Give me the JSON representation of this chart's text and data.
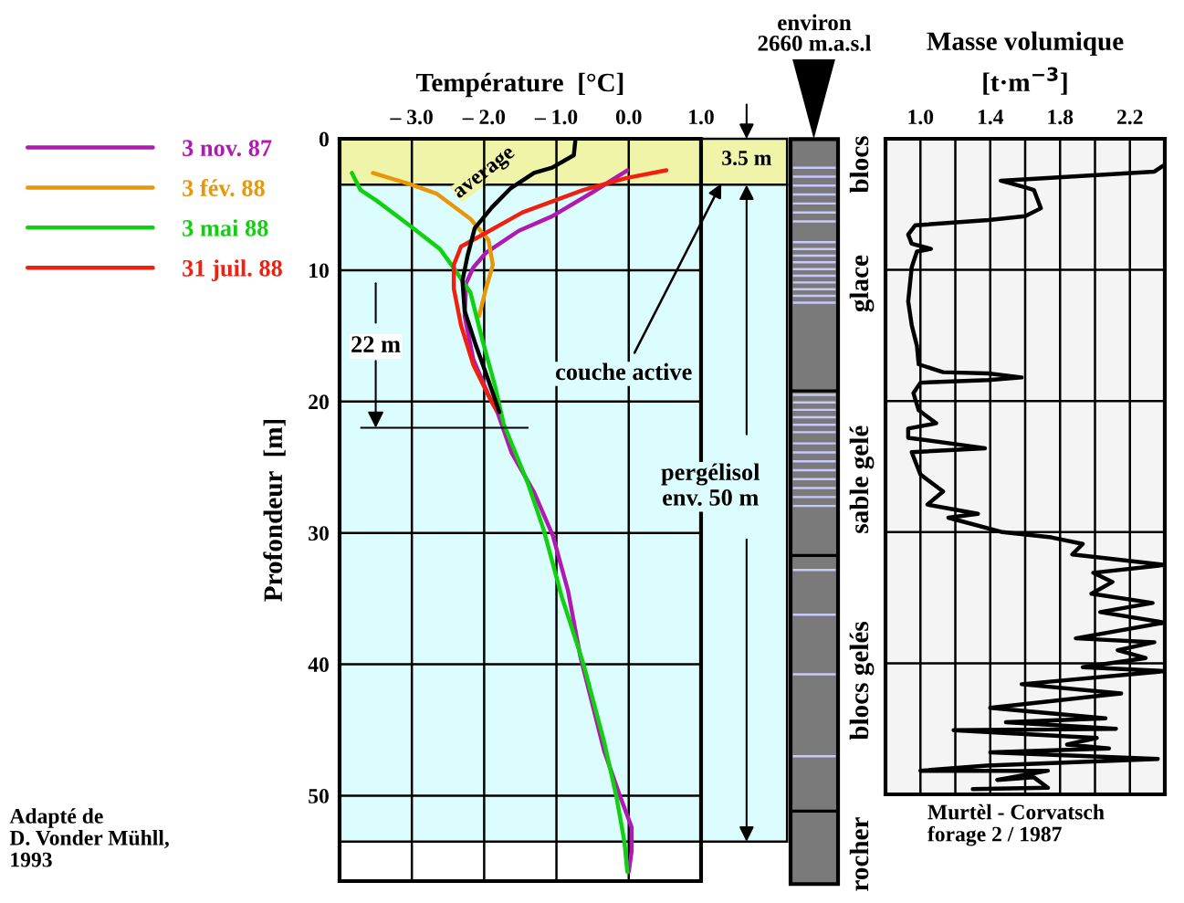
{
  "chart_data": [
    {
      "type": "line",
      "xlabel": "Température  [°C]",
      "ylabel": "Profondeur  [m]",
      "xlim": [
        -4,
        1
      ],
      "ylim": [
        56.5,
        0
      ],
      "xticks": [
        {
          "value": -3,
          "label": "– 3.0"
        },
        {
          "value": -2,
          "label": "– 2.0"
        },
        {
          "value": -1,
          "label": "– 1.0"
        },
        {
          "value": 0,
          "label": "0.0"
        },
        {
          "value": 1,
          "label": "1.0"
        }
      ],
      "yticks": [
        0,
        10,
        20,
        30,
        40,
        50
      ],
      "grid": true,
      "legend": "left",
      "line_style": "solid",
      "series": [
        {
          "name": "3 nov. 87",
          "color": "#b01ab0",
          "x": [
            -0.02,
            -0.51,
            -1.06,
            -1.52,
            -1.98,
            -2.15,
            -2.25,
            -2.27,
            -2.15,
            -1.94,
            -1.81,
            -1.62,
            -1.31,
            -1.05,
            -0.84,
            -0.67,
            -0.34,
            -0.13,
            0.04,
            0.04,
            0.0
          ],
          "values": [
            2.4,
            4.1,
            5.9,
            7.0,
            8.7,
            9.8,
            11.0,
            13.5,
            16.8,
            19.5,
            20.9,
            23.9,
            26.9,
            30.2,
            34.4,
            39.4,
            46.6,
            49.9,
            52.4,
            54.2,
            55.8
          ]
        },
        {
          "name": "3 fév. 88",
          "color": "#e8960a",
          "x": [
            -3.54,
            -3.03,
            -2.65,
            -2.19,
            -1.94,
            -1.88,
            -1.98,
            -2.07
          ],
          "values": [
            2.6,
            3.45,
            4.2,
            6.1,
            7.7,
            9.6,
            11.5,
            13.5
          ]
        },
        {
          "name": "3 mai 88",
          "color": "#10d010",
          "x": [
            -3.83,
            -3.71,
            -3.49,
            -3.03,
            -2.61,
            -2.4,
            -2.19,
            -2.02,
            -1.85,
            -1.73,
            -1.39,
            -1.18,
            -0.93,
            -0.63,
            -0.34,
            -0.17,
            -0.06,
            -0.02
          ],
          "values": [
            2.6,
            3.9,
            4.7,
            6.6,
            8.4,
            10.0,
            11.7,
            15.4,
            18.8,
            21.7,
            26.3,
            29.7,
            34.8,
            39.9,
            45.9,
            50.1,
            53.5,
            55.8
          ]
        },
        {
          "name": "31 juil. 88",
          "color": "#f02010",
          "x": [
            0.52,
            -0.04,
            -0.63,
            -1.47,
            -2.02,
            -2.32,
            -2.42,
            -2.42,
            -2.32,
            -2.15,
            -1.9,
            -1.82
          ],
          "values": [
            2.4,
            3.0,
            3.9,
            5.6,
            7.3,
            8.2,
            9.6,
            11.4,
            14.2,
            17.2,
            20.0,
            20.7
          ]
        },
        {
          "color": "#000000",
          "x": [
            -0.74,
            -0.76,
            -1.06,
            -1.31,
            -1.64,
            -1.89,
            -2.13,
            -2.23,
            -2.3,
            -2.27,
            -2.11,
            -1.94,
            -1.79
          ],
          "values": [
            0.2,
            1.25,
            2.2,
            2.6,
            3.8,
            5.2,
            6.8,
            8.9,
            10.8,
            13.1,
            15.8,
            18.4,
            20.8
          ]
        }
      ],
      "bands": [
        {
          "axis": "y",
          "from": 0,
          "to": 3.5,
          "color": "#f0f4a8",
          "label": "couche active"
        },
        {
          "axis": "y",
          "from": 3.5,
          "to": 53.5,
          "color": "#dcfdfd",
          "label": "pergélisol\nenv. 50 m"
        }
      ],
      "ref_lines": [
        {
          "axis": "y",
          "value": 22,
          "label": "22 m",
          "color": "#000000"
        }
      ],
      "annotations": [
        "average",
        "3.5 m",
        "Adapté de\nD. Vonder Mühll,\n1993"
      ]
    },
    {
      "type": "other",
      "title": "environ\n2660 m.a.s.l",
      "annotations": [
        "blocs",
        "glace",
        "sable gelé",
        "blocs gelés",
        "rocher"
      ]
    },
    {
      "type": "line",
      "title": "Masse volumique",
      "xlabel": "[t·m$^{−3}$]",
      "xlim": [
        0.8,
        2.4
      ],
      "ylim": [
        50,
        0
      ],
      "xticks": [
        {
          "value": 1.0,
          "label": "1.0"
        },
        {
          "value": 1.2,
          "label": null
        },
        {
          "value": 1.4,
          "label": "1.4"
        },
        {
          "value": 1.6,
          "label": null
        },
        {
          "value": 1.8,
          "label": "1.8"
        },
        {
          "value": 2.0,
          "label": null
        },
        {
          "value": 2.2,
          "label": "2.2"
        }
      ],
      "yticks": [
        0,
        10,
        20,
        30,
        40,
        50
      ],
      "tick_labels": "x",
      "grid": true,
      "line_style": "solid",
      "series": [
        {
          "color": "#000000",
          "x": [
            2.39,
            2.34,
            1.46,
            1.6,
            1.65,
            1.69,
            1.6,
            1.39,
            0.97,
            0.93,
            0.95,
            1.06,
            0.98,
            0.95,
            0.93,
            0.95,
            0.98,
            0.99,
            1.13,
            1.39,
            1.58,
            1.39,
            1.0,
            0.96,
            0.99,
            1.09,
            0.93,
            0.93,
            1.37,
            0.95,
            1.0,
            1.13,
            1.04,
            1.33,
            1.16,
            1.47,
            1.75,
            1.93,
            1.87,
            2.4,
            1.99,
            2.1,
            1.98,
            2.33,
            2.03,
            2.4,
            1.89,
            2.34,
            2.13,
            2.29,
            1.93,
            2.4,
            1.58,
            2.15,
            1.4,
            2.06,
            1.49,
            2.12,
            1.19,
            2.01,
            1.84,
            2.08,
            1.4,
            2.36,
            1.38,
            1.0,
            1.73,
            1.44,
            1.65,
            1.73,
            1.3
          ],
          "values": [
            2.06,
            2.5,
            3.2,
            3.7,
            3.9,
            5.3,
            5.9,
            6.2,
            6.6,
            7.3,
            8.0,
            8.4,
            8.6,
            9.8,
            12.4,
            14.2,
            15.8,
            17.2,
            17.8,
            17.9,
            18.2,
            18.4,
            18.6,
            19.4,
            20.7,
            21.7,
            22.1,
            22.8,
            23.6,
            23.9,
            25.6,
            26.9,
            27.9,
            28.6,
            28.9,
            30.0,
            30.4,
            30.9,
            31.7,
            32.5,
            33.1,
            33.8,
            34.7,
            35.4,
            36.1,
            36.9,
            38.1,
            38.4,
            39.0,
            39.6,
            40.3,
            40.6,
            41.6,
            42.3,
            43.4,
            44.2,
            44.5,
            45.0,
            45.1,
            45.7,
            46.2,
            46.5,
            46.8,
            47.3,
            47.8,
            48.2,
            48.2,
            48.9,
            48.7,
            49.5,
            49.6
          ]
        }
      ],
      "annotations": [
        "Murtèl - Corvatsch\nforage 2 / 1987"
      ]
    }
  ]
}
